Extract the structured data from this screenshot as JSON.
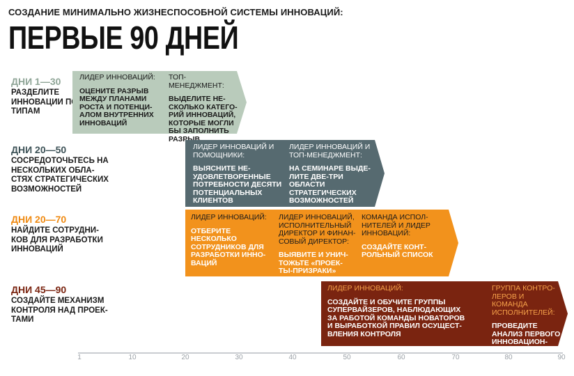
{
  "header": {
    "supertitle": "СОЗДАНИЕ МИНИМАЛЬНО ЖИЗНЕСПОСОБНОЙ СИСТЕМЫ ИННОВАЦИЙ:",
    "title": "ПЕРВЫЕ 90 ДНЕЙ"
  },
  "colors": {
    "phase1": "#b9cbbb",
    "phase2": "#566a70",
    "phase3": "#f2921c",
    "phase4": "#7a2410",
    "phase1_days": "#8fa597",
    "phase2_days": "#3d5257",
    "phase3_days": "#ef8a12",
    "phase4_days": "#7a2410"
  },
  "phases": [
    {
      "days": "ДНИ 1—30",
      "desc": "РАЗДЕЛИТЕ ИННОВАЦИИ ПО ТИПАМ",
      "columns": [
        {
          "role": "ЛИДЕР ИННОВАЦИЙ:",
          "task": "ОЦЕНИТЕ РАЗРЫВ МЕЖДУ ПЛАНАМИ РОСТА И ПОТЕНЦИ- АЛОМ ВНУТРЕННИХ ИННОВАЦИЙ"
        },
        {
          "role": "ТОП-МЕНЕДЖМЕНТ:",
          "task": "ВЫДЕЛИТЕ НЕ- СКОЛЬКО КАТЕГО- РИЙ ИННОВАЦИЙ, КОТОРЫЕ МОГЛИ БЫ ЗАПОЛНИТЬ РАЗРЫВ"
        }
      ]
    },
    {
      "days": "ДНИ 20—50",
      "desc": "СОСРЕДОТОЧЬТЕСЬ НА НЕСКОЛЬКИХ ОБЛА- СТЯХ СТРАТЕГИЧЕСКИХ ВОЗМОЖНОСТЕЙ",
      "columns": [
        {
          "role": "ЛИДЕР ИННОВАЦИЙ И ПОМОЩНИКИ:",
          "task": "ВЫЯСНИТЕ НЕ- УДОВЛЕТВОРЕННЫЕ ПОТРЕБНОСТИ ДЕСЯТИ ПОТЕНЦИАЛЬНЫХ КЛИЕНТОВ"
        },
        {
          "role": "ЛИДЕР ИННОВАЦИЙ И ТОП-МЕНЕДЖМЕНТ:",
          "task": "НА СЕМИНАРЕ ВЫДЕ- ЛИТЕ ДВЕ-ТРИ ОБЛАСТИ СТРАТЕГИЧЕСКИХ ВОЗМОЖНОСТЕЙ"
        }
      ]
    },
    {
      "days": "ДНИ 20—70",
      "desc": "НАЙДИТЕ СОТРУДНИ- КОВ ДЛЯ РАЗРАБОТКИ ИННОВАЦИЙ",
      "columns": [
        {
          "role": "ЛИДЕР ИННОВАЦИЙ:",
          "task": "ОТБЕРИТЕ НЕСКОЛЬКО СОТРУДНИКОВ ДЛЯ РАЗРАБОТКИ ИННО- ВАЦИЙ"
        },
        {
          "role": "ЛИДЕР ИННОВАЦИЙ, ИСПОЛНИТЕЛЬНЫЙ ДИРЕКТОР И ФИНАН- СОВЫЙ ДИРЕКТОР:",
          "task": "ВЫЯВИТЕ И УНИЧ- ТОЖЬТЕ «ПРОЕК- ТЫ-ПРИЗРАКИ»"
        },
        {
          "role": "КОМАНДА ИСПОЛ- НИТЕЛЕЙ И ЛИДЕР ИННОВАЦИЙ:",
          "task": "СОЗДАЙТЕ КОНТ- РОЛЬНЫЙ СПИСОК"
        }
      ]
    },
    {
      "days": "ДНИ 45—90",
      "desc": "СОЗДАЙТЕ МЕХАНИЗМ КОНТРОЛЯ НАД ПРОЕК- ТАМИ",
      "columns": [
        {
          "role": "ЛИДЕР ИННОВАЦИЙ:",
          "task": "СОЗДАЙТЕ И ОБУЧИТЕ ГРУППЫ СУПЕРВАЙЗЕРОВ, НАБЛЮДАЮЩИХ ЗА РАБОТОЙ КОМАНДЫ НОВАТОРОВ И ВЫРАБОТКОЙ ПРАВИЛ ОСУЩЕСТ- ВЛЕНИЯ КОНТРОЛЯ"
        },
        {
          "role": "ГРУППА КОНТРО- ЛЕРОВ И КОМАНДА ИСПОЛНИТЕЛЕЙ:",
          "task": "ПРОВЕДИТЕ АНАЛИЗ ПЕРВОГО ИННОВАЦИОН- НОГО ПРОЕКТА"
        }
      ]
    }
  ],
  "axis": {
    "ticks": [
      "1",
      "10",
      "20",
      "30",
      "40",
      "50",
      "60",
      "70",
      "80",
      "90"
    ]
  }
}
